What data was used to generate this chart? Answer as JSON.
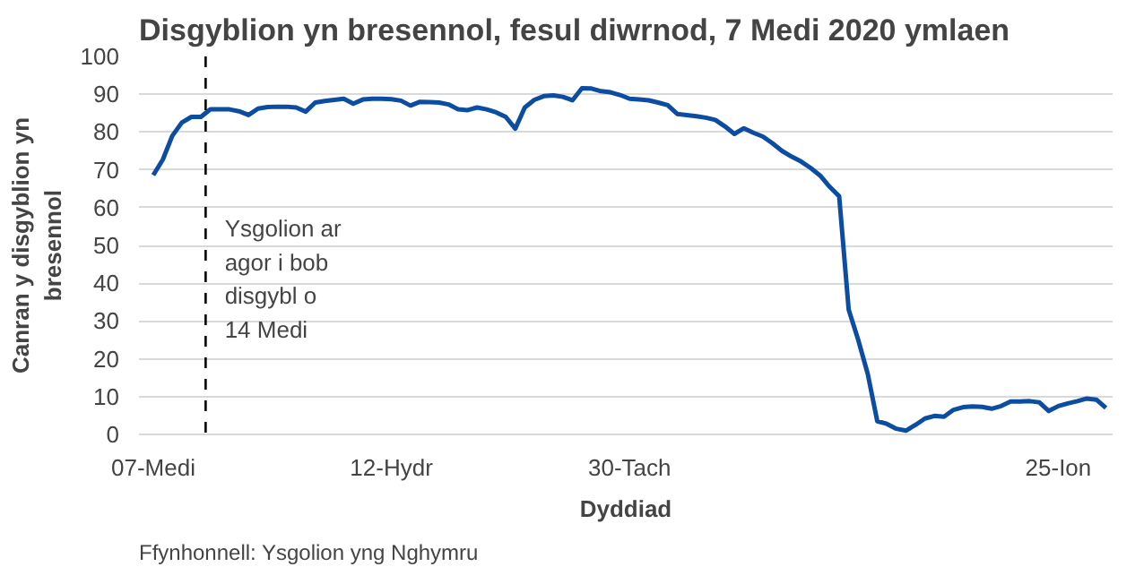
{
  "chart_data": {
    "type": "line",
    "title": "Disgyblion yn bresennol, fesul diwrnod, 7 Medi 2020 ymlaen",
    "xlabel": "Dyddiad",
    "ylabel": "Canran y disgyblion yn bresennol",
    "categories": [
      "07-Medi",
      null,
      null,
      null,
      null,
      null,
      null,
      null,
      null,
      null,
      null,
      null,
      null,
      null,
      null,
      null,
      null,
      null,
      null,
      null,
      null,
      null,
      null,
      null,
      null,
      "12-Hydr",
      null,
      null,
      null,
      null,
      null,
      null,
      null,
      null,
      null,
      null,
      null,
      null,
      null,
      null,
      null,
      null,
      null,
      null,
      null,
      null,
      null,
      null,
      null,
      null,
      "30-Tach",
      null,
      null,
      null,
      null,
      null,
      null,
      null,
      null,
      null,
      null,
      null,
      null,
      null,
      null,
      null,
      null,
      null,
      null,
      null,
      null,
      null,
      null,
      null,
      null,
      null,
      null,
      null,
      null,
      null,
      null,
      null,
      null,
      null,
      null,
      null,
      null,
      null,
      null,
      null,
      null,
      null,
      null,
      null,
      null,
      "25-Ion",
      null,
      null,
      null,
      null,
      null
    ],
    "series": [
      {
        "color": "#0c4da2",
        "values": [
          68.6,
          72.7,
          79,
          82.5,
          84,
          84,
          86,
          86,
          86,
          85.5,
          84.5,
          86.2,
          86.6,
          86.7,
          86.7,
          86.5,
          85.4,
          87.8,
          88.2,
          88.5,
          88.8,
          87.5,
          88.6,
          88.8,
          88.8,
          88.7,
          88.3,
          87,
          88,
          87.9,
          87.8,
          87.3,
          86,
          85.8,
          86.5,
          86,
          85.2,
          84,
          80.9,
          86.5,
          88.5,
          89.5,
          89.7,
          89.3,
          88.4,
          91.6,
          91.5,
          90.8,
          90.5,
          89.8,
          88.8,
          88.6,
          88.4,
          87.8,
          87.1,
          84.8,
          84.5,
          84.2,
          83.8,
          83.2,
          81.5,
          79.5,
          81,
          79.8,
          78.8,
          77,
          75,
          73.5,
          72.2,
          70.5,
          68.5,
          65.5,
          63,
          33,
          25,
          16,
          3.5,
          2.8,
          1.5,
          1,
          2.5,
          4.2,
          4.9,
          4.7,
          6.5,
          7.2,
          7.4,
          7.3,
          6.8,
          7.5,
          8.7,
          8.7,
          8.8,
          8.5,
          6.2,
          7.5,
          8.2,
          8.8,
          9.5,
          9.2,
          7
        ]
      }
    ],
    "ylim": [
      0,
      100
    ],
    "yticks": [
      0,
      10,
      20,
      30,
      40,
      50,
      60,
      70,
      80,
      90,
      100
    ],
    "grid": "y",
    "line_style": "solid",
    "annotations": [
      "Ysgolion ar agor i bob disgybl o 14 Medi",
      "Ffynhonnell: Ysgolion yng Nghymru"
    ]
  }
}
